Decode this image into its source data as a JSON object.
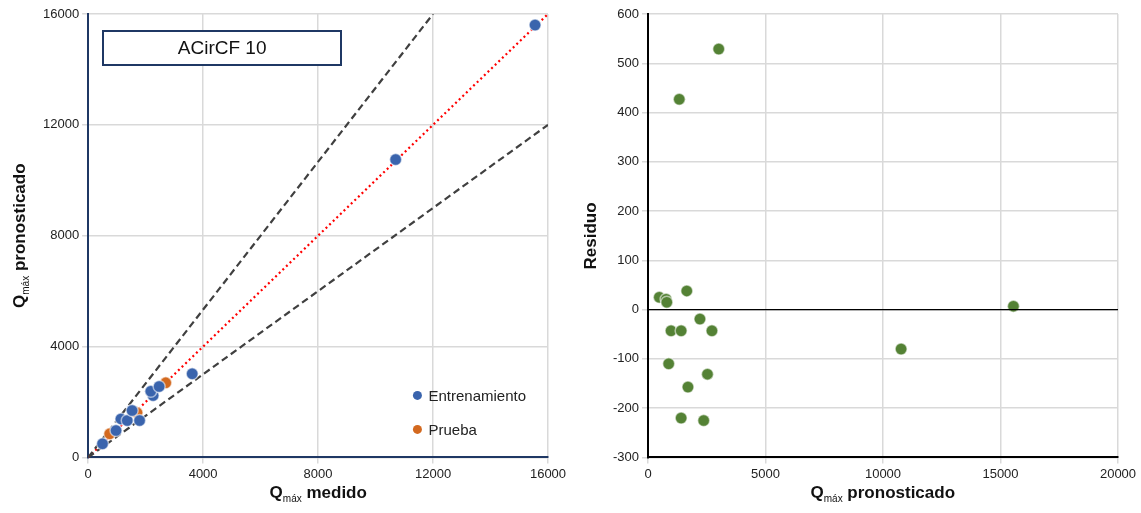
{
  "chart_data": [
    {
      "type": "scatter",
      "xlabel": "Q$_{máx}$ medido",
      "ylabel": "Q$_{máx}$ pronosticado",
      "annotations": [
        "ACirCF 10"
      ],
      "xlim": [
        0,
        16000
      ],
      "ylim": [
        0,
        16000
      ],
      "xticks": [
        0,
        4000,
        8000,
        12000,
        16000
      ],
      "yticks": [
        0,
        4000,
        8000,
        12000,
        16000
      ],
      "grid": true,
      "legend": "bottom right",
      "marker": "circle",
      "series": [
        {
          "name": "Entrenamiento",
          "color": "#3a64ad",
          "x": [
            500,
            970,
            1140,
            1360,
            1530,
            1790,
            2260,
            2180,
            2470,
            3620,
            10700,
            15550
          ],
          "values": [
            490,
            970,
            1390,
            1330,
            1690,
            1330,
            2230,
            2390,
            2560,
            3020,
            10750,
            15600
          ]
        },
        {
          "name": "Prueba",
          "color": "#d3691f",
          "x": [
            750,
            1700,
            2700
          ],
          "values": [
            850,
            1610,
            2690
          ]
        },
        {
          "type": "line",
          "color": "#404040",
          "line_style": "dashed",
          "marker": "none",
          "x": [
            0,
            12000
          ],
          "values": [
            0,
            16000
          ]
        },
        {
          "type": "line",
          "color": "#404040",
          "line_style": "dashed",
          "marker": "none",
          "x": [
            0,
            16000
          ],
          "values": [
            0,
            12000
          ]
        },
        {
          "type": "line",
          "color": "#ff0000",
          "line_style": "dotted",
          "marker": "none",
          "x": [
            0,
            16000
          ],
          "values": [
            0,
            16000
          ]
        }
      ]
    },
    {
      "type": "scatter",
      "xlabel": "Q$_{máx}$ pronosticado",
      "ylabel": "Residuo",
      "xlim": [
        0,
        20000
      ],
      "ylim": [
        -300,
        600
      ],
      "xticks": [
        0,
        5000,
        10000,
        15000,
        20000
      ],
      "yticks": [
        -300,
        -200,
        -100,
        0,
        100,
        200,
        300,
        400,
        500,
        600
      ],
      "grid": true,
      "marker": "circle",
      "ref_lines": [
        {
          "axis": "y",
          "value": 0,
          "color": "#000000"
        }
      ],
      "series": [
        {
          "color": "#548235",
          "x": [
            3010,
            1330,
            480,
            770,
            800,
            1650,
            2210,
            980,
            1410,
            2720,
            880,
            2530,
            1700,
            1410,
            2370,
            10770,
            15550
          ],
          "values": [
            529,
            427,
            25,
            21,
            15,
            38,
            -19,
            -43,
            -43,
            -43,
            -110,
            -131,
            -157,
            -220,
            -225,
            -80,
            7
          ]
        }
      ]
    }
  ]
}
